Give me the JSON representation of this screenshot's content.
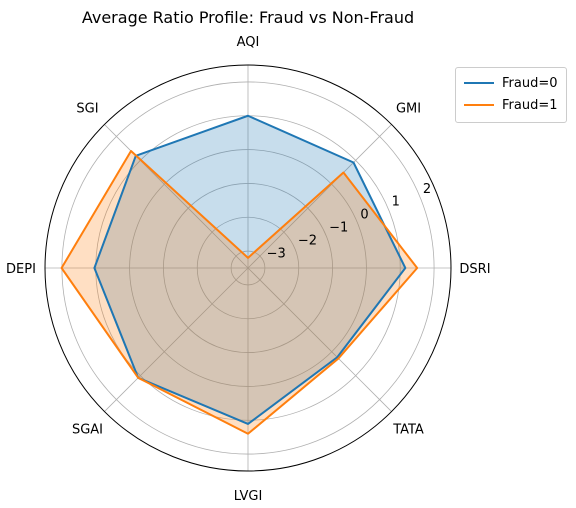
{
  "chart_data": {
    "type": "radar",
    "title": "Average Ratio Profile: Fraud vs Non-Fraud",
    "categories": [
      "DSRI",
      "GMI",
      "AQI",
      "SGI",
      "DEPI",
      "SGAI",
      "LVGI",
      "TATA"
    ],
    "radial_ticks": [
      "−3",
      "−2",
      "−1",
      "0",
      "1",
      "2"
    ],
    "radial_range": [
      -3.5,
      2.5
    ],
    "grid": true,
    "legend_position": "outside-top-right",
    "series": [
      {
        "name": "Fraud=0",
        "color": "#1f77b4",
        "fill": "#1f77b4",
        "values": [
          1.15,
          0.91,
          1.0,
          1.19,
          1.04,
          1.09,
          1.11,
          0.23
        ]
      },
      {
        "name": "Fraud=1",
        "color": "#ff7f0e",
        "fill": "#ff7f0e",
        "values": [
          1.5,
          0.49,
          -3.2,
          1.39,
          2.01,
          1.09,
          1.4,
          0.28
        ]
      }
    ]
  }
}
